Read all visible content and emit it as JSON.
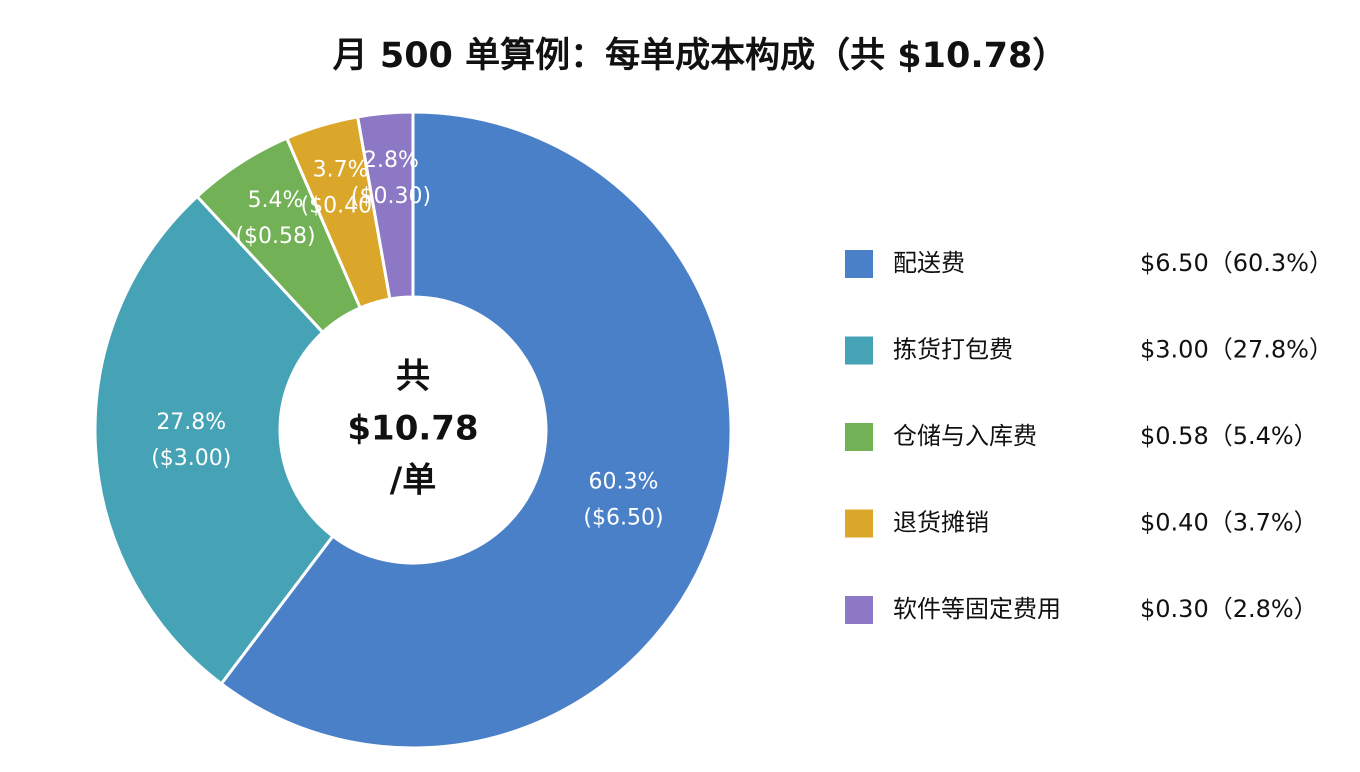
{
  "chart_data": {
    "type": "pie",
    "title": "月 500 单算例：每单成本构成（共 $10.78）",
    "categories": [
      "配送费",
      "拣货打包费",
      "仓储与入库费",
      "退货摊销",
      "软件等固定费用"
    ],
    "values": [
      6.5,
      3.0,
      0.58,
      0.4,
      0.3
    ],
    "value_labels": [
      "($6.50)",
      "($3.00)",
      "($0.58)",
      "($0.40)",
      "($0.30)"
    ],
    "percent_labels": [
      "60.3%",
      "27.8%",
      "5.4%",
      "3.7%",
      "2.8%"
    ],
    "legend_values": [
      "$6.50（60.3%）",
      "$3.00（27.8%）",
      "$0.58（5.4%）",
      "$0.40（3.7%）",
      "$0.30（2.8%）"
    ],
    "colors": [
      "#4a80c8",
      "#45a3b5",
      "#72b155",
      "#dba72b",
      "#8c78c4"
    ],
    "center_text": [
      "共",
      "$10.78",
      "/单"
    ],
    "legend": "right"
  }
}
